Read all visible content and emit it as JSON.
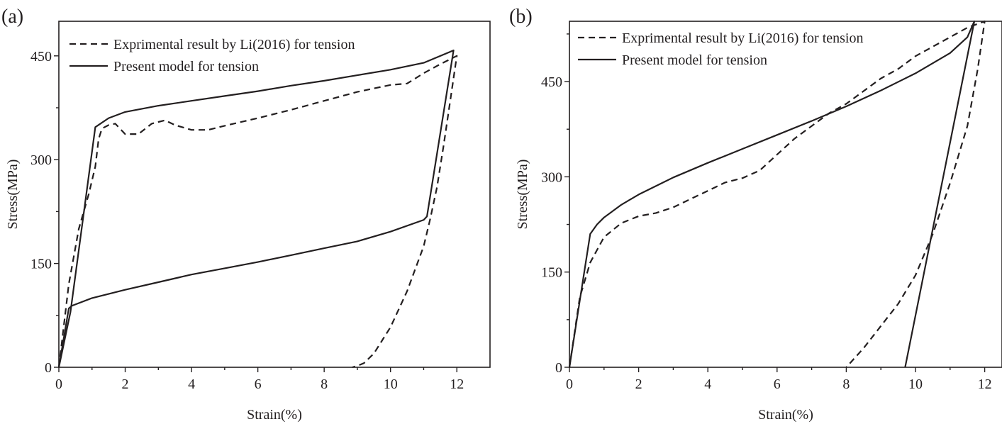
{
  "chart_data": [
    {
      "panel_label": "(a)",
      "type": "line",
      "title": "",
      "xlabel": "Strain(%)",
      "ylabel": "Stress(MPa)",
      "xlim": [
        0,
        13
      ],
      "ylim": [
        0,
        500
      ],
      "xticks": [
        0,
        2,
        4,
        6,
        8,
        10,
        12
      ],
      "yticks": [
        0,
        150,
        300,
        450
      ],
      "grid": false,
      "legend_position": "top-left",
      "series": [
        {
          "name": "Exprimental result by Li(2016) for tension",
          "style": "dashed",
          "x": [
            0,
            0.3,
            0.6,
            0.9,
            1.1,
            1.2,
            1.3,
            1.5,
            1.7,
            2.0,
            2.4,
            2.8,
            3.2,
            3.5,
            4.0,
            4.5,
            5.0,
            6.0,
            7.0,
            8.0,
            9.0,
            10.0,
            10.5,
            11.0,
            11.5,
            12.0,
            11.8,
            11.6,
            11.4,
            11.2,
            11.0,
            10.5,
            10.0,
            9.5,
            9.2,
            9.0,
            8.85
          ],
          "y": [
            0,
            120,
            200,
            250,
            290,
            330,
            345,
            350,
            352,
            337,
            337,
            352,
            357,
            350,
            343,
            343,
            349,
            360,
            372,
            385,
            398,
            408,
            410,
            425,
            438,
            450,
            385,
            320,
            260,
            215,
            175,
            110,
            58,
            20,
            6,
            2,
            0
          ]
        },
        {
          "name": "Present model for tension",
          "style": "solid",
          "x": [
            0,
            0.35,
            1.1,
            1.5,
            2.0,
            3.0,
            4.0,
            5.0,
            6.0,
            7.0,
            8.0,
            9.0,
            10.0,
            11.0,
            11.9,
            11.1,
            11.0,
            10.0,
            9.0,
            8.0,
            7.0,
            6.0,
            5.0,
            4.0,
            3.0,
            2.0,
            1.0,
            0.4,
            0.3,
            0
          ],
          "y": [
            0,
            80,
            347,
            360,
            369,
            378,
            385,
            392,
            399,
            407,
            414,
            422,
            430,
            440,
            458,
            218,
            213,
            196,
            182,
            172,
            162,
            152,
            143,
            134,
            123,
            112,
            100,
            89,
            85,
            0
          ]
        }
      ]
    },
    {
      "panel_label": "(b)",
      "type": "line",
      "title": "",
      "xlabel": "Strain(%)",
      "ylabel": "Stress(MPa)",
      "xlim": [
        0,
        12.5
      ],
      "ylim": [
        0,
        545
      ],
      "xticks": [
        0,
        2,
        4,
        6,
        8,
        10,
        12
      ],
      "yticks": [
        0,
        150,
        300,
        450
      ],
      "grid": false,
      "legend_position": "top-left",
      "series": [
        {
          "name": "Exprimental result by Li(2016) for tension",
          "style": "dashed",
          "x": [
            0,
            0.3,
            0.6,
            1.0,
            1.5,
            2.0,
            2.5,
            3.0,
            3.5,
            4.0,
            4.5,
            5.0,
            5.5,
            6.0,
            6.5,
            7.0,
            7.5,
            8.0,
            8.5,
            9.0,
            9.5,
            10.0,
            10.5,
            11.0,
            11.5,
            12.0,
            11.8,
            11.5,
            11.0,
            10.5,
            10.0,
            9.5,
            9.0,
            8.5,
            8.0
          ],
          "y": [
            0,
            110,
            165,
            205,
            227,
            238,
            243,
            252,
            265,
            278,
            291,
            298,
            310,
            335,
            360,
            380,
            400,
            415,
            435,
            455,
            470,
            490,
            505,
            520,
            535,
            545,
            470,
            380,
            290,
            210,
            145,
            100,
            65,
            30,
            0
          ]
        },
        {
          "name": "Present model for tension",
          "style": "solid",
          "x": [
            0,
            0.3,
            0.6,
            0.8,
            1.0,
            1.5,
            2.0,
            3.0,
            4.0,
            5.0,
            6.0,
            7.0,
            8.0,
            9.0,
            10.0,
            11.0,
            11.5,
            11.7,
            9.7
          ],
          "y": [
            0,
            105,
            210,
            225,
            236,
            256,
            272,
            299,
            322,
            344,
            366,
            388,
            411,
            436,
            463,
            495,
            520,
            545,
            0
          ]
        }
      ]
    }
  ]
}
